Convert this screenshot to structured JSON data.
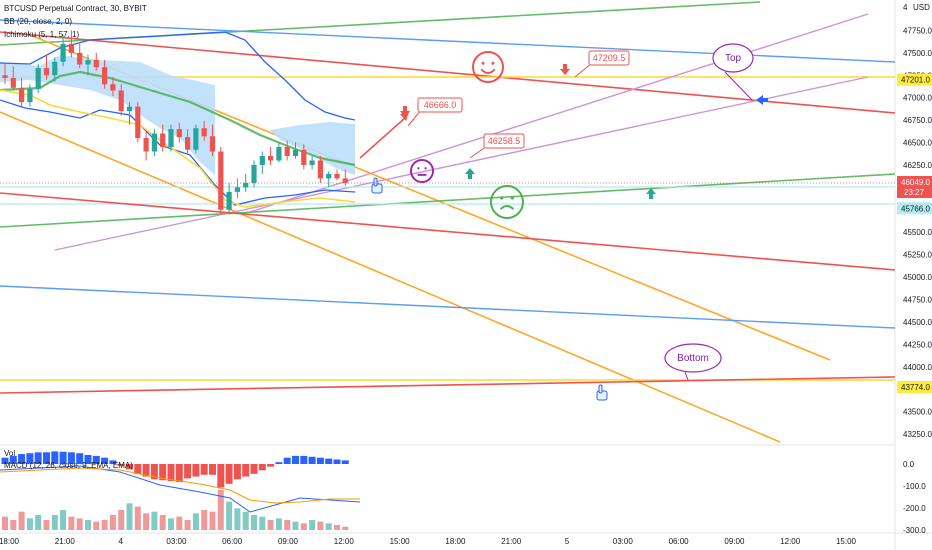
{
  "legend": {
    "symbol_line": "BTCUSD Perpetual Contract, 30, BYBIT",
    "bb_line": "BB (20, close, 2, 0)",
    "ichimoku_line": "Ichimoku (5, 1, 57, 1)",
    "vol_label": "Vol",
    "macd_line": "MACD (12, 26, close, 9, EMA, EMA)"
  },
  "currency": "USD",
  "price_axis": {
    "ticks": [
      "47750.0",
      "47500.0",
      "47250.0",
      "47000.0",
      "46750.0",
      "46500.0",
      "46250.0",
      "46000.0",
      "45750.0",
      "45500.0",
      "45250.0",
      "45000.0",
      "44750.0",
      "44500.0",
      "44250.0",
      "44000.0",
      "43750.0",
      "43500.0",
      "43250.0"
    ],
    "top_label": "4",
    "current_price": "46049.0",
    "countdown": "23:27",
    "levels": [
      {
        "value": "47201.0",
        "color": "#ffeb3b"
      },
      {
        "value": "45953.0",
        "color": "#b2ebf2"
      },
      {
        "value": "45766.0",
        "color": "#b2ebf2"
      },
      {
        "value": "43774.0",
        "color": "#ffeb3b"
      }
    ]
  },
  "macd_axis": {
    "ticks": [
      "0.0",
      "-100.0",
      "-200.0",
      "-300.0"
    ]
  },
  "time_axis": {
    "ticks": [
      "18:00",
      "21:00",
      "4",
      "03:00",
      "06:00",
      "09:00",
      "12:00",
      "15:00",
      "18:00",
      "21:00",
      "5",
      "03:00",
      "06:00",
      "09:00",
      "12:00",
      "15:00"
    ]
  },
  "annotations": {
    "callouts": [
      "46666.0",
      "47209.5",
      "46258.5"
    ],
    "balloons": [
      "Top",
      "Bottom"
    ]
  },
  "chart_data": {
    "type": "candlestick",
    "title": "BTCUSD Perpetual Contract, 30, BYBIT",
    "ylim": [
      43150,
      48000
    ],
    "price_levels": [
      47201.0,
      45953.0,
      45766.0,
      43774.0
    ],
    "last_price": 46049.0,
    "candles": [
      {
        "o": 47250,
        "h": 47380,
        "l": 47150,
        "c": 47220
      },
      {
        "o": 47220,
        "h": 47350,
        "l": 47080,
        "c": 47110
      },
      {
        "o": 47110,
        "h": 47220,
        "l": 46900,
        "c": 46950
      },
      {
        "o": 46950,
        "h": 47150,
        "l": 46900,
        "c": 47100
      },
      {
        "o": 47100,
        "h": 47380,
        "l": 47050,
        "c": 47330
      },
      {
        "o": 47330,
        "h": 47480,
        "l": 47200,
        "c": 47250
      },
      {
        "o": 47250,
        "h": 47450,
        "l": 47180,
        "c": 47400
      },
      {
        "o": 47400,
        "h": 47700,
        "l": 47350,
        "c": 47600
      },
      {
        "o": 47600,
        "h": 47750,
        "l": 47450,
        "c": 47500
      },
      {
        "o": 47500,
        "h": 47600,
        "l": 47330,
        "c": 47370
      },
      {
        "o": 47370,
        "h": 47480,
        "l": 47250,
        "c": 47420
      },
      {
        "o": 47420,
        "h": 47500,
        "l": 47300,
        "c": 47340
      },
      {
        "o": 47340,
        "h": 47420,
        "l": 47100,
        "c": 47150
      },
      {
        "o": 47150,
        "h": 47230,
        "l": 47020,
        "c": 47080
      },
      {
        "o": 47080,
        "h": 47150,
        "l": 46800,
        "c": 46850
      },
      {
        "o": 46850,
        "h": 46950,
        "l": 46700,
        "c": 46900
      },
      {
        "o": 46900,
        "h": 46950,
        "l": 46500,
        "c": 46550
      },
      {
        "o": 46550,
        "h": 46620,
        "l": 46300,
        "c": 46400
      },
      {
        "o": 46400,
        "h": 46650,
        "l": 46350,
        "c": 46600
      },
      {
        "o": 46600,
        "h": 46700,
        "l": 46400,
        "c": 46450
      },
      {
        "o": 46450,
        "h": 46700,
        "l": 46400,
        "c": 46650
      },
      {
        "o": 46650,
        "h": 46720,
        "l": 46500,
        "c": 46560
      },
      {
        "o": 46560,
        "h": 46650,
        "l": 46380,
        "c": 46420
      },
      {
        "o": 46420,
        "h": 46700,
        "l": 46380,
        "c": 46660
      },
      {
        "o": 46660,
        "h": 46740,
        "l": 46520,
        "c": 46570
      },
      {
        "o": 46570,
        "h": 46700,
        "l": 46350,
        "c": 46400
      },
      {
        "o": 46400,
        "h": 46450,
        "l": 45700,
        "c": 45750
      },
      {
        "o": 45750,
        "h": 46050,
        "l": 45700,
        "c": 45950
      },
      {
        "o": 45950,
        "h": 46100,
        "l": 45880,
        "c": 46000
      },
      {
        "o": 46000,
        "h": 46150,
        "l": 45950,
        "c": 46050
      },
      {
        "o": 46050,
        "h": 46300,
        "l": 46000,
        "c": 46250
      },
      {
        "o": 46250,
        "h": 46400,
        "l": 46150,
        "c": 46350
      },
      {
        "o": 46350,
        "h": 46450,
        "l": 46250,
        "c": 46300
      },
      {
        "o": 46300,
        "h": 46500,
        "l": 46280,
        "c": 46450
      },
      {
        "o": 46450,
        "h": 46520,
        "l": 46300,
        "c": 46350
      },
      {
        "o": 46350,
        "h": 46500,
        "l": 46320,
        "c": 46420
      },
      {
        "o": 46420,
        "h": 46480,
        "l": 46200,
        "c": 46250
      },
      {
        "o": 46250,
        "h": 46350,
        "l": 46200,
        "c": 46300
      },
      {
        "o": 46300,
        "h": 46350,
        "l": 46050,
        "c": 46100
      },
      {
        "o": 46100,
        "h": 46180,
        "l": 46000,
        "c": 46150
      },
      {
        "o": 46150,
        "h": 46200,
        "l": 46080,
        "c": 46100
      },
      {
        "o": 46100,
        "h": 46200,
        "l": 46020,
        "c": 46049
      }
    ],
    "macd_hist": [
      35,
      45,
      55,
      60,
      65,
      65,
      70,
      68,
      65,
      60,
      50,
      45,
      35,
      20,
      -10,
      -30,
      -55,
      -70,
      -85,
      -90,
      -95,
      -100,
      -80,
      -70,
      -60,
      -60,
      -130,
      -110,
      -85,
      -70,
      -55,
      -35,
      -15,
      10,
      35,
      45,
      45,
      40,
      35,
      30,
      25,
      20
    ],
    "volume": [
      40,
      30,
      55,
      35,
      45,
      30,
      45,
      60,
      40,
      35,
      30,
      25,
      30,
      45,
      60,
      80,
      70,
      50,
      55,
      45,
      35,
      40,
      30,
      50,
      60,
      55,
      120,
      85,
      65,
      55,
      45,
      40,
      30,
      35,
      30,
      25,
      20,
      30,
      25,
      20,
      15,
      10
    ]
  }
}
